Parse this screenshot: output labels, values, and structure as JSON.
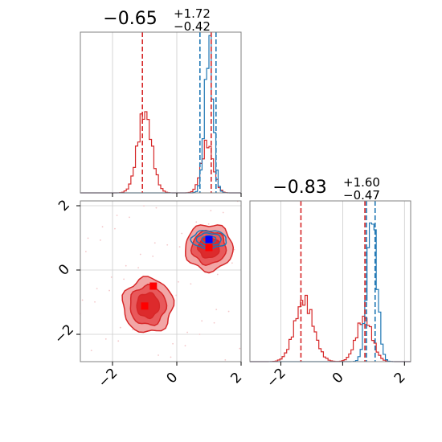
{
  "colors": {
    "red": "#d62728",
    "blue": "#1f77b4",
    "red_fill_light": "#f2a6a6",
    "red_fill_mid": "#e8595b",
    "red_fill_dark": "#dd2a2c",
    "grid": "#cccccc",
    "frame": "#808080"
  },
  "chart_data": [
    {
      "type": "histogram",
      "panel": "top-left",
      "title_value": "−0.65",
      "title_sup": "+1.72",
      "title_sub": "−0.42",
      "xlim": [
        -3.0,
        2.0
      ],
      "ylim": [
        0,
        1.1
      ],
      "grid": true,
      "x_ticks": [
        -2,
        0,
        2
      ],
      "series": [
        {
          "color": "red",
          "peaks": [
            {
              "center": -1.0,
              "width": 0.22,
              "height": 0.55
            },
            {
              "center": 0.95,
              "width": 0.18,
              "height": 0.34
            }
          ]
        },
        {
          "color": "blue",
          "peaks": [
            {
              "center": 1.0,
              "width": 0.13,
              "height": 1.0
            }
          ]
        }
      ],
      "vlines": [
        {
          "color": "red",
          "x": -1.07
        },
        {
          "color": "red",
          "x": 1.07
        },
        {
          "color": "blue",
          "x": 0.72
        },
        {
          "color": "blue",
          "x": 1.22
        }
      ]
    },
    {
      "type": "contour",
      "panel": "bottom-left",
      "xlim": [
        -3.0,
        2.0
      ],
      "ylim": [
        -2.85,
        2.15
      ],
      "grid": true,
      "x_ticks": [
        -2,
        0,
        2
      ],
      "x_tick_labels": [
        "−2",
        "0",
        "2"
      ],
      "y_ticks": [
        -2,
        0,
        2
      ],
      "y_tick_labels": [
        "−2",
        "0",
        "2"
      ],
      "red_clusters": [
        {
          "cx": -0.9,
          "cy": -1.1,
          "rx": 0.78,
          "ry": 0.85
        },
        {
          "cx": 1.0,
          "cy": 0.7,
          "rx": 0.74,
          "ry": 0.72
        }
      ],
      "blue_cluster": {
        "cx": 1.0,
        "cy": 0.95,
        "rx": 0.55,
        "ry": 0.28
      },
      "markers": [
        {
          "color": "blue",
          "x": 1.0,
          "y": 0.95
        },
        {
          "color": "red",
          "x": 1.0,
          "y": 0.7
        },
        {
          "color": "red",
          "x": -0.73,
          "y": -0.5
        },
        {
          "color": "red",
          "x": -1.0,
          "y": -1.12
        }
      ]
    },
    {
      "type": "histogram",
      "panel": "bottom-right",
      "title_value": "−0.83",
      "title_sup": "+1.60",
      "title_sub": "−0.47",
      "xlim": [
        -3.0,
        2.2
      ],
      "ylim": [
        0,
        1.1
      ],
      "grid": true,
      "x_ticks": [
        -2,
        0,
        2
      ],
      "x_tick_labels": [
        "−2",
        "0",
        "2"
      ],
      "series": [
        {
          "color": "red",
          "peaks": [
            {
              "center": -1.25,
              "width": 0.3,
              "height": 0.42
            },
            {
              "center": 0.7,
              "width": 0.25,
              "height": 0.3
            }
          ]
        },
        {
          "color": "blue",
          "peaks": [
            {
              "center": 0.95,
              "width": 0.16,
              "height": 1.0
            }
          ]
        }
      ],
      "vlines": [
        {
          "color": "red",
          "x": -1.35
        },
        {
          "color": "red",
          "x": 0.72
        },
        {
          "color": "blue",
          "x": 0.77
        },
        {
          "color": "blue",
          "x": 1.05
        }
      ]
    }
  ]
}
